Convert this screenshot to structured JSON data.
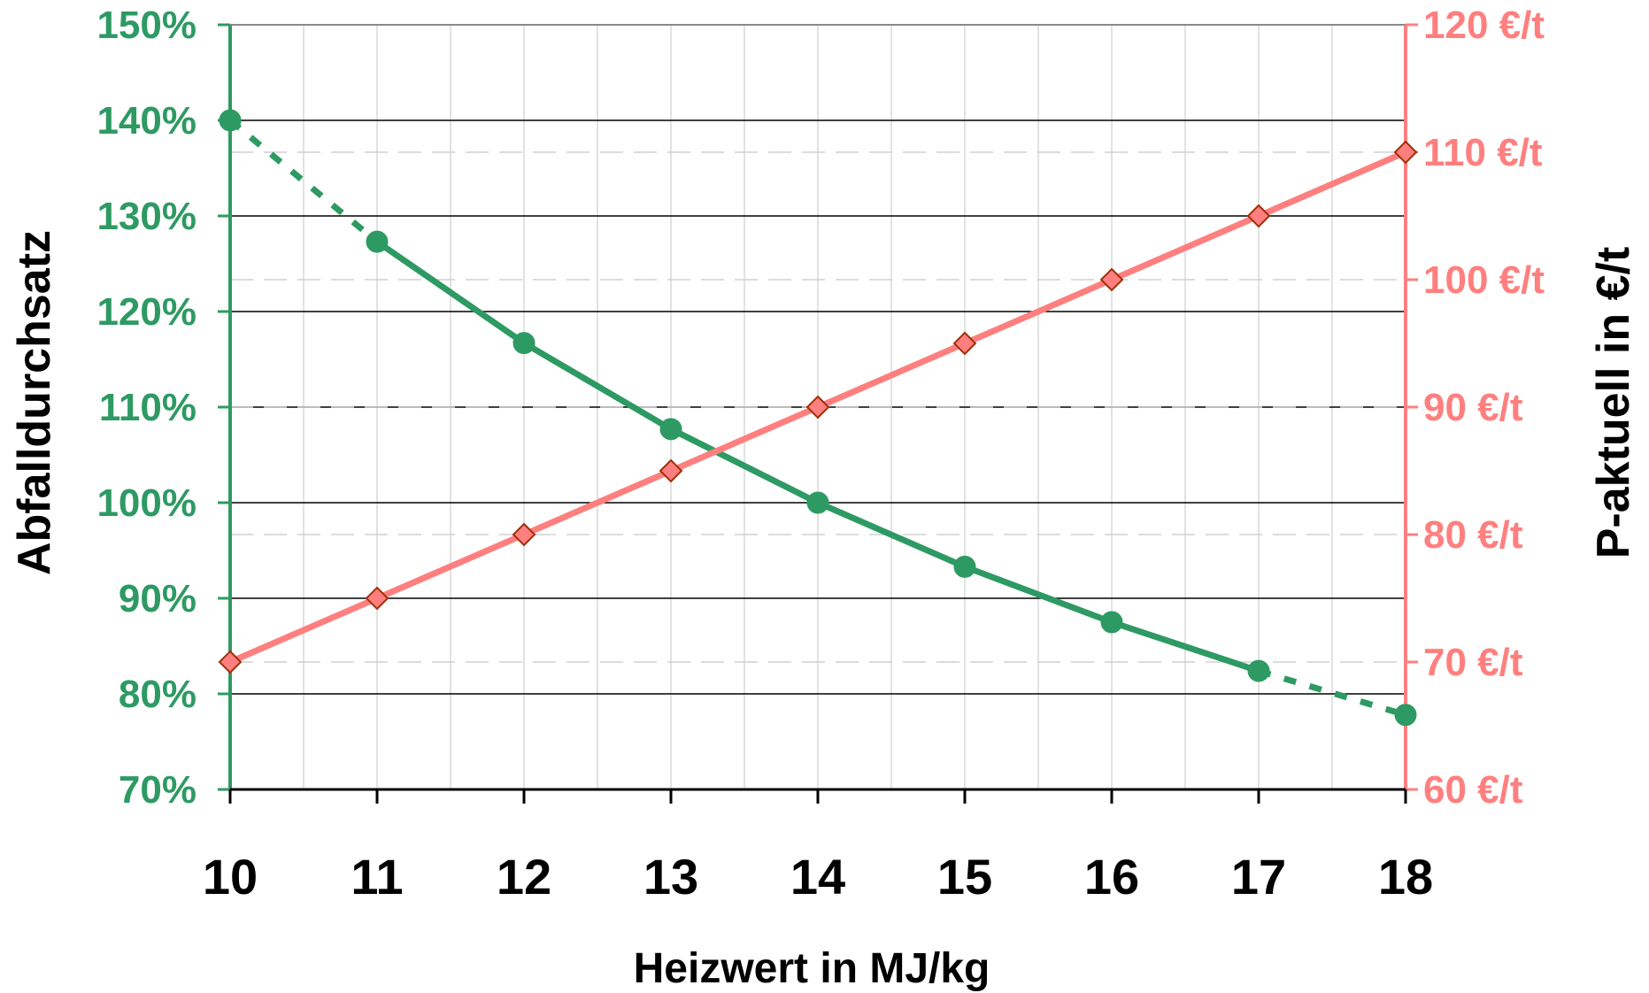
{
  "chart_data": {
    "type": "line",
    "xlabel": "Heizwert in MJ/kg",
    "ylabel_left": "Abfalldurchsatz",
    "ylabel_right": "P-aktuell in €/t",
    "x": [
      10,
      11,
      12,
      13,
      14,
      15,
      16,
      17,
      18
    ],
    "x_tick_labels": [
      "10",
      "11",
      "12",
      "13",
      "14",
      "15",
      "16",
      "17",
      "18"
    ],
    "xlim": [
      10,
      18
    ],
    "ylim_left": [
      70,
      150
    ],
    "ylim_right": [
      60,
      120
    ],
    "y_left_tick_values": [
      70,
      80,
      90,
      100,
      110,
      120,
      130,
      140,
      150
    ],
    "y_left_tick_labels": [
      "70%",
      "80%",
      "90%",
      "100%",
      "110%",
      "120%",
      "130%",
      "140%",
      "150%"
    ],
    "y_right_tick_values": [
      60,
      70,
      80,
      90,
      100,
      110,
      120
    ],
    "y_right_tick_labels": [
      "60 €/t",
      "70 €/t",
      "80 €/t",
      "90 €/t",
      "100 €/t",
      "110 €/t",
      "120 €/t"
    ],
    "grid": true,
    "series": [
      {
        "axis": "left",
        "color": "#2e9a63",
        "marker": "circle",
        "values": [
          140,
          127.3,
          116.7,
          107.7,
          100,
          93.3,
          87.5,
          82.4,
          77.8
        ],
        "dashed_segments": [
          [
            0,
            1
          ],
          [
            7,
            8
          ]
        ]
      },
      {
        "axis": "right",
        "color": "#ff7f7f",
        "marker": "diamond",
        "values": [
          70,
          75,
          80,
          85,
          90,
          95,
          100,
          105,
          110
        ]
      }
    ]
  }
}
